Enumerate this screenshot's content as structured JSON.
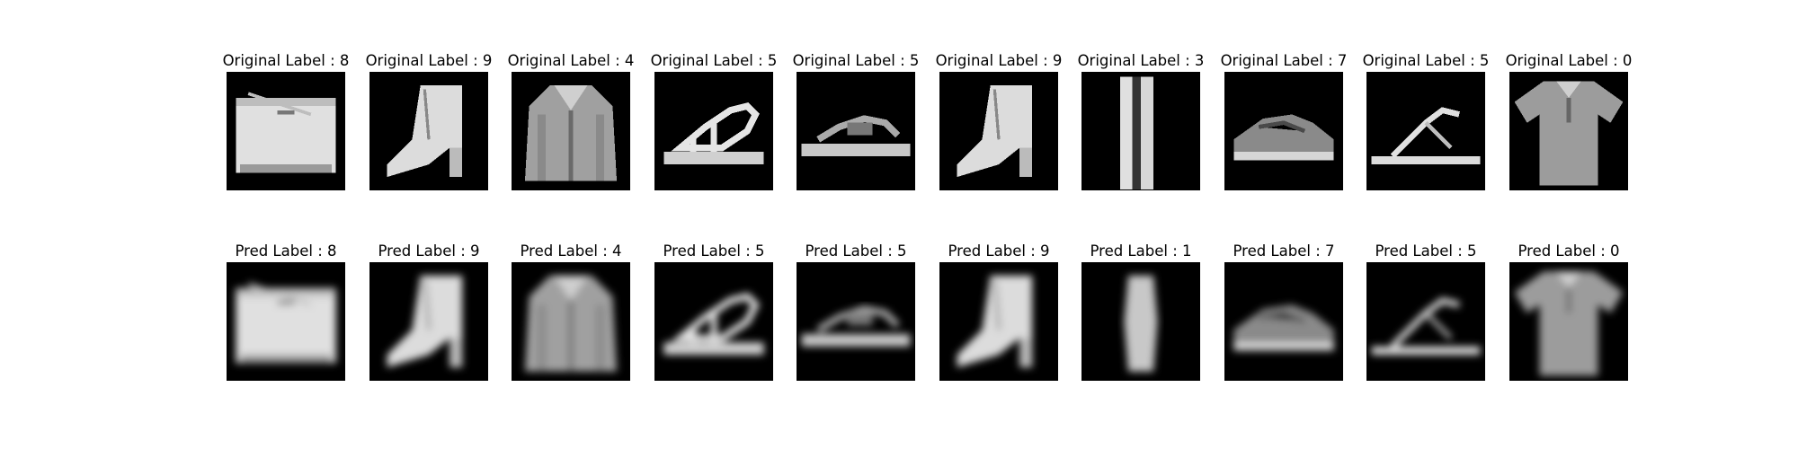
{
  "figure": {
    "rows": [
      {
        "kind": "original",
        "items": [
          {
            "title": "Original Label : 8",
            "icon": "bag-icon"
          },
          {
            "title": "Original Label : 9",
            "icon": "ankle-boot-icon"
          },
          {
            "title": "Original Label : 4",
            "icon": "coat-icon"
          },
          {
            "title": "Original Label : 5",
            "icon": "sandal-icon"
          },
          {
            "title": "Original Label : 5",
            "icon": "sandal-low-icon"
          },
          {
            "title": "Original Label : 9",
            "icon": "ankle-boot-icon"
          },
          {
            "title": "Original Label : 3",
            "icon": "dress-icon"
          },
          {
            "title": "Original Label : 7",
            "icon": "sneaker-icon"
          },
          {
            "title": "Original Label : 5",
            "icon": "flip-flop-icon"
          },
          {
            "title": "Original Label : 0",
            "icon": "tshirt-icon"
          }
        ]
      },
      {
        "kind": "predicted",
        "items": [
          {
            "title": "Pred Label : 8",
            "icon": "bag-blurry-icon"
          },
          {
            "title": "Pred Label : 9",
            "icon": "ankle-boot-blurry-icon"
          },
          {
            "title": "Pred Label : 4",
            "icon": "coat-blurry-icon"
          },
          {
            "title": "Pred Label : 5",
            "icon": "sandal-blurry-icon"
          },
          {
            "title": "Pred Label : 5",
            "icon": "sandal-low-blurry-icon"
          },
          {
            "title": "Pred Label : 9",
            "icon": "ankle-boot-blurry-icon"
          },
          {
            "title": "Pred Label : 1",
            "icon": "trouser-blurry-icon"
          },
          {
            "title": "Pred Label : 7",
            "icon": "sneaker-blurry-icon"
          },
          {
            "title": "Pred Label : 5",
            "icon": "flip-flop-blurry-icon"
          },
          {
            "title": "Pred Label : 0",
            "icon": "tshirt-blurry-icon"
          }
        ]
      }
    ]
  },
  "colors": {
    "background": "#ffffff",
    "thumbnail_background": "#000000",
    "item_light": "#e6e6e6",
    "item_mid": "#a8a8a8",
    "item_dark": "#5a5a5a"
  }
}
